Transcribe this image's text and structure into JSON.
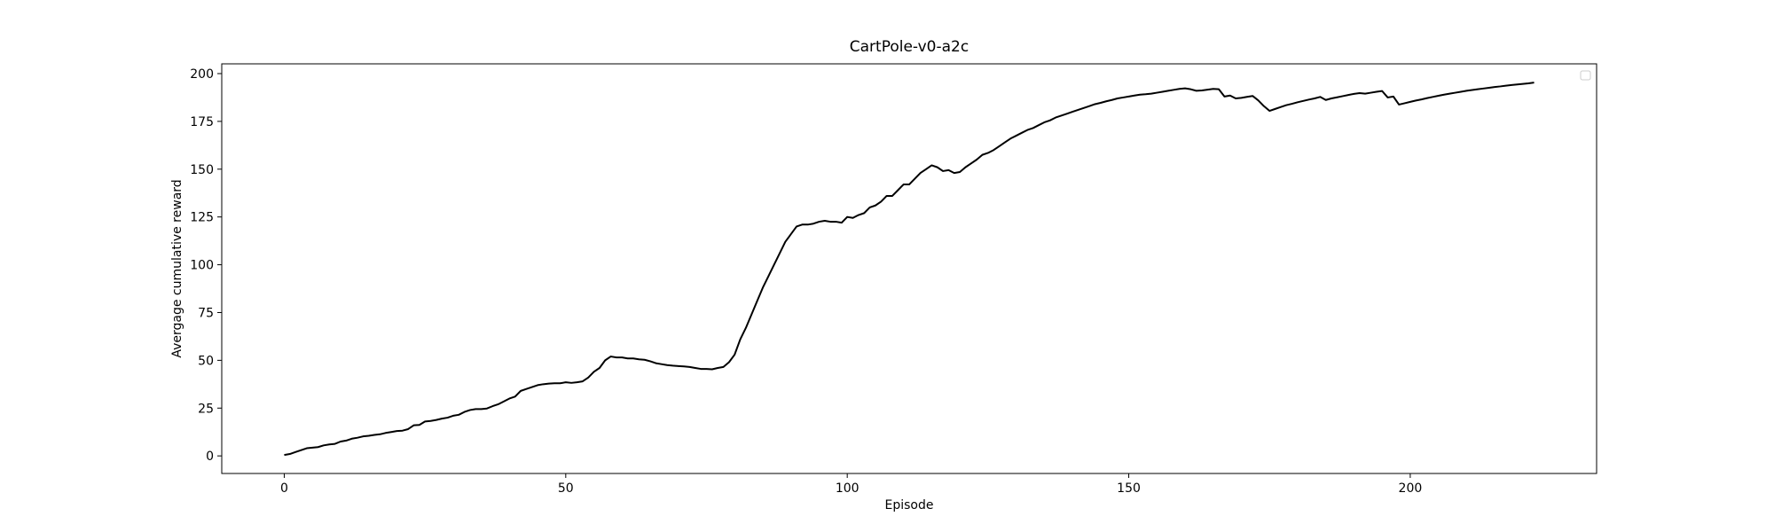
{
  "chart_data": {
    "type": "line",
    "title": "CartPole-v0-a2c",
    "x_label": "Episode",
    "y_label": "Avergage cumulative reward",
    "x": [
      0,
      1,
      2,
      3,
      4,
      5,
      6,
      7,
      8,
      9,
      10,
      11,
      12,
      13,
      14,
      15,
      16,
      17,
      18,
      19,
      20,
      21,
      22,
      23,
      24,
      25,
      26,
      27,
      28,
      29,
      30,
      31,
      32,
      33,
      34,
      35,
      36,
      37,
      38,
      39,
      40,
      41,
      42,
      43,
      44,
      45,
      46,
      47,
      48,
      49,
      50,
      51,
      52,
      53,
      54,
      55,
      56,
      57,
      58,
      59,
      60,
      61,
      62,
      63,
      64,
      65,
      66,
      67,
      68,
      69,
      70,
      71,
      72,
      73,
      74,
      75,
      76,
      77,
      78,
      79,
      80,
      81,
      82,
      83,
      84,
      85,
      86,
      87,
      88,
      89,
      90,
      91,
      92,
      93,
      94,
      95,
      96,
      97,
      98,
      99,
      100,
      101,
      102,
      103,
      104,
      105,
      106,
      107,
      108,
      109,
      110,
      111,
      112,
      113,
      114,
      115,
      116,
      117,
      118,
      119,
      120,
      121,
      122,
      123,
      124,
      125,
      126,
      127,
      128,
      129,
      130,
      131,
      132,
      133,
      134,
      135,
      136,
      137,
      138,
      139,
      140,
      141,
      142,
      143,
      144,
      145,
      146,
      147,
      148,
      149,
      150,
      151,
      152,
      153,
      154,
      155,
      156,
      157,
      158,
      159,
      160,
      161,
      162,
      163,
      164,
      165,
      166,
      167,
      168,
      169,
      170,
      171,
      172,
      173,
      174,
      175,
      176,
      177,
      178,
      179,
      180,
      181,
      182,
      183,
      184,
      185,
      186,
      187,
      188,
      189,
      190,
      191,
      192,
      193,
      194,
      195,
      196,
      197,
      198,
      199,
      200,
      201,
      202,
      203,
      204,
      205,
      206,
      207,
      208,
      209,
      210,
      211,
      212,
      213,
      214,
      215,
      216,
      217,
      218,
      219,
      220,
      221,
      222
    ],
    "series": [
      {
        "color": "#000000",
        "values": [
          0.5,
          1,
          2,
          3,
          4,
          4.3,
          4.6,
          5.5,
          6,
          6.3,
          7.5,
          8,
          9,
          9.5,
          10.2,
          10.5,
          11,
          11.3,
          12,
          12.5,
          13,
          13.2,
          14,
          16,
          16.2,
          18,
          18.3,
          18.8,
          19.5,
          20,
          21,
          21.5,
          23,
          24,
          24.5,
          24.5,
          24.8,
          26,
          27,
          28.5,
          30,
          31,
          34,
          35,
          36,
          37,
          37.5,
          37.8,
          38,
          38,
          38.5,
          38.2,
          38.5,
          39,
          41,
          44,
          46,
          50,
          52,
          51.5,
          51.5,
          51,
          51,
          50.5,
          50.3,
          49.5,
          48.5,
          48,
          47.5,
          47.2,
          47,
          46.8,
          46.5,
          46,
          45.5,
          45.5,
          45.3,
          46,
          46.5,
          49,
          53,
          61,
          67,
          74,
          81,
          88,
          94,
          100,
          106,
          112,
          116,
          120,
          121,
          121,
          121.5,
          122.5,
          123,
          122.5,
          122.5,
          122,
          125,
          124.5,
          126,
          127,
          130,
          131,
          133,
          136,
          136,
          139,
          142,
          142,
          145,
          148,
          150,
          152,
          151,
          149,
          149.5,
          148,
          148.5,
          151,
          153,
          155,
          157.5,
          158.5,
          160,
          162,
          164,
          166,
          167.5,
          169,
          170.5,
          171.5,
          173,
          174.5,
          175.5,
          177,
          178,
          179,
          180,
          181,
          182,
          183,
          184,
          184.7,
          185.5,
          186.2,
          187,
          187.5,
          188,
          188.5,
          189,
          189.2,
          189.5,
          190,
          190.5,
          191,
          191.5,
          192,
          192.3,
          191.8,
          191,
          191.2,
          191.6,
          192,
          191.8,
          188,
          188.5,
          187,
          187.3,
          187.8,
          188.3,
          186,
          183,
          180.5,
          181.5,
          182.5,
          183.5,
          184.2,
          185,
          185.7,
          186.4,
          187,
          187.8,
          186.2,
          187,
          187.6,
          188.2,
          188.8,
          189.4,
          189.8,
          189.5,
          190,
          190.5,
          190.9,
          187.5,
          188,
          183.8,
          184.5,
          185.2,
          185.9,
          186.5,
          187.2,
          187.8,
          188.4,
          189,
          189.5,
          190,
          190.5,
          191,
          191.4,
          191.8,
          192.2,
          192.6,
          193,
          193.3,
          193.7,
          194,
          194.3,
          194.6,
          194.9,
          195.3
        ]
      }
    ],
    "xlim": [
      -11.1,
      233.1
    ],
    "ylim": [
      -9.2,
      205.1
    ],
    "xticks": [
      0,
      50,
      100,
      150,
      200
    ],
    "yticks": [
      0,
      25,
      50,
      75,
      100,
      125,
      150,
      175,
      200
    ],
    "legend": "upper right"
  }
}
